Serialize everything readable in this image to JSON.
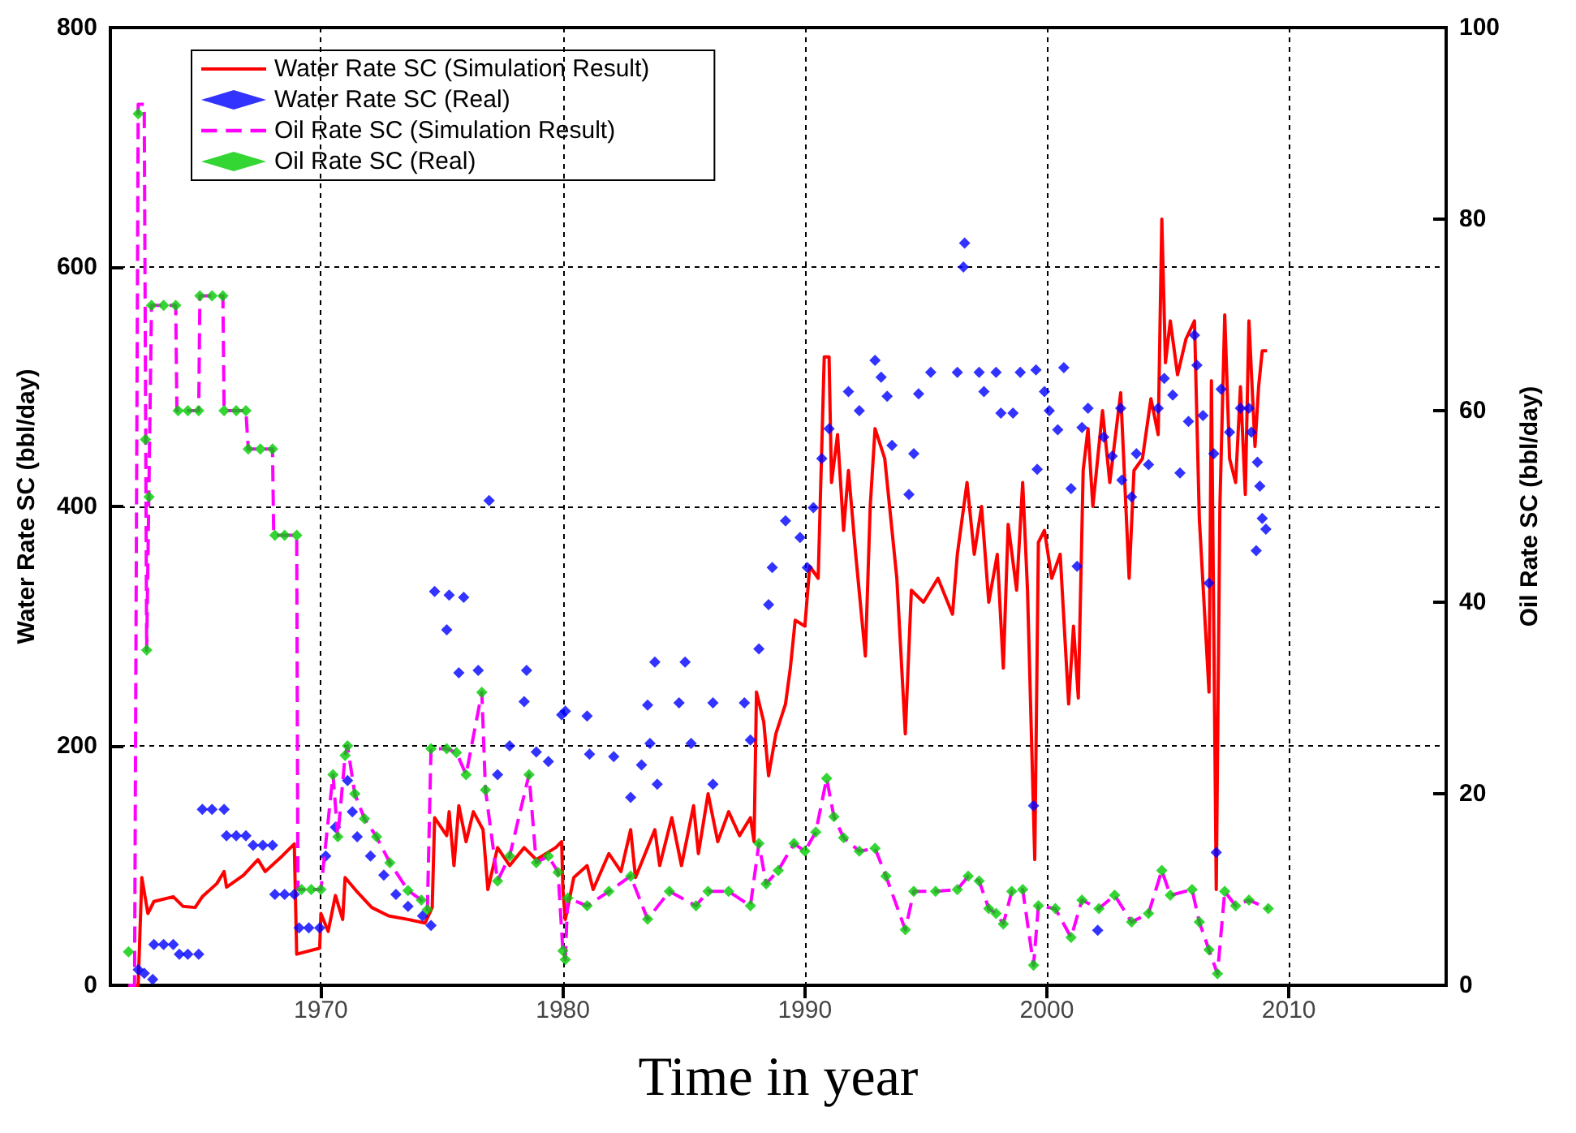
{
  "chart_data": {
    "type": "line",
    "xlabel": "Time in year",
    "ylabel": "Water Rate SC (bbl/day)",
    "y2label": "Oil Rate SC (bbl/day)",
    "xlim": [
      1961.3,
      2016.5
    ],
    "xticks": [
      1970,
      1980,
      1990,
      2000,
      2010
    ],
    "ylim": [
      0,
      800
    ],
    "yticks": [
      0,
      200,
      400,
      600,
      800
    ],
    "y2lim": [
      0,
      100
    ],
    "y2ticks": [
      0,
      20,
      40,
      60,
      80,
      100
    ],
    "grid": true,
    "legend": "top left",
    "series": [
      {
        "name": "Water Rate SC (Simulation Result)",
        "type": "line",
        "color": "#ff0000",
        "line_style": "solid",
        "marker": "none",
        "x": [
          1962.05,
          1962.45,
          1962.6,
          1962.85,
          1963.1,
          1963.9,
          1964.3,
          1964.8,
          1965.1,
          1965.7,
          1966.0,
          1966.1,
          1966.8,
          1967.4,
          1967.7,
          1968.4,
          1968.9,
          1969.0,
          1969.95,
          1970.0,
          1970.3,
          1970.6,
          1970.9,
          1971.0,
          1971.5,
          1972.1,
          1972.8,
          1973.6,
          1974.3,
          1974.6,
          1974.7,
          1975.2,
          1975.3,
          1975.5,
          1975.7,
          1976.0,
          1976.3,
          1976.7,
          1976.9,
          1977.3,
          1977.8,
          1978.4,
          1978.9,
          1979.7,
          1979.95,
          1980.0,
          1980.1,
          1980.45,
          1981.0,
          1981.25,
          1981.9,
          1982.4,
          1982.8,
          1983.0,
          1983.8,
          1984.0,
          1984.5,
          1984.9,
          1985.4,
          1985.6,
          1986.0,
          1986.4,
          1986.85,
          1987.3,
          1987.75,
          1987.9,
          1988.0,
          1988.3,
          1988.5,
          1988.8,
          1989.2,
          1989.4,
          1989.6,
          1990.0,
          1990.2,
          1990.55,
          1990.8,
          1991.0,
          1991.1,
          1991.35,
          1991.6,
          1991.8,
          1992.1,
          1992.5,
          1992.7,
          1992.9,
          1993.3,
          1993.6,
          1993.8,
          1994.15,
          1994.4,
          1994.9,
          1995.5,
          1996.1,
          1996.3,
          1996.7,
          1997.0,
          1997.3,
          1997.6,
          1997.95,
          1998.2,
          1998.4,
          1998.75,
          1999.0,
          1999.2,
          1999.5,
          1999.65,
          1999.9,
          2000.2,
          2000.55,
          2000.9,
          2001.1,
          2001.3,
          2001.5,
          2001.7,
          2001.9,
          2002.3,
          2002.6,
          2003.05,
          2003.4,
          2003.6,
          2003.95,
          2004.3,
          2004.6,
          2004.75,
          2004.9,
          2005.1,
          2005.4,
          2005.75,
          2006.1,
          2006.3,
          2006.7,
          2006.8,
          2007.0,
          2007.15,
          2007.35,
          2007.55,
          2007.8,
          2008.0,
          2008.2,
          2008.35,
          2008.6,
          2008.75,
          2008.9,
          2009.1
        ],
        "values": [
          0,
          0,
          90,
          60,
          70,
          74,
          66,
          65,
          74,
          85,
          95,
          82,
          92,
          105,
          95,
          108,
          118,
          26,
          31,
          60,
          45,
          75,
          55,
          90,
          78,
          65,
          58,
          55,
          52,
          65,
          140,
          125,
          145,
          100,
          150,
          120,
          145,
          130,
          80,
          115,
          100,
          115,
          105,
          115,
          120,
          80,
          55,
          90,
          100,
          80,
          110,
          95,
          130,
          90,
          130,
          100,
          140,
          100,
          150,
          110,
          160,
          120,
          145,
          125,
          140,
          120,
          245,
          220,
          175,
          210,
          235,
          265,
          305,
          300,
          350,
          340,
          525,
          525,
          420,
          460,
          380,
          430,
          360,
          275,
          400,
          465,
          440,
          380,
          340,
          210,
          330,
          320,
          340,
          310,
          360,
          420,
          360,
          400,
          320,
          360,
          265,
          385,
          330,
          420,
          330,
          105,
          370,
          380,
          340,
          360,
          235,
          300,
          240,
          430,
          465,
          400,
          480,
          420,
          495,
          340,
          430,
          440,
          490,
          460,
          640,
          520,
          555,
          510,
          540,
          555,
          390,
          245,
          505,
          80,
          400,
          560,
          440,
          420,
          500,
          410,
          555,
          450,
          500,
          530,
          530
        ]
      },
      {
        "name": "Water Rate SC (Real)",
        "type": "scatter",
        "color": "#0000ff",
        "marker": "diamond",
        "x": [
          1962.45,
          1962.7,
          1963.05,
          1963.1,
          1963.5,
          1963.9,
          1964.15,
          1964.5,
          1964.95,
          1965.1,
          1965.5,
          1966.0,
          1966.1,
          1966.5,
          1966.9,
          1967.2,
          1967.6,
          1968.0,
          1968.1,
          1968.5,
          1968.9,
          1969.1,
          1969.5,
          1969.95,
          1970.2,
          1970.6,
          1971.1,
          1971.3,
          1971.5,
          1972.05,
          1972.6,
          1973.1,
          1973.6,
          1974.2,
          1974.55,
          1974.7,
          1975.3,
          1975.9,
          1975.2,
          1975.7,
          1976.5,
          1976.95,
          1977.3,
          1977.8,
          1978.5,
          1978.4,
          1978.9,
          1979.4,
          1979.95,
          1980.1,
          1981.0,
          1981.1,
          1982.1,
          1983.25,
          1982.8,
          1983.8,
          1985.05,
          1983.5,
          1984.8,
          1986.2,
          1987.5,
          1983.6,
          1985.3,
          1987.75,
          1983.9,
          1986.2,
          1988.1,
          1988.5,
          1988.65,
          1989.2,
          1989.8,
          1990.1,
          1990.35,
          1990.7,
          1991.0,
          1991.8,
          1992.25,
          1992.9,
          1993.15,
          1993.4,
          1993.6,
          1994.3,
          1994.5,
          1995.2,
          1994.7,
          1996.3,
          1996.55,
          1996.6,
          1997.2,
          1997.4,
          1997.9,
          1998.1,
          1998.9,
          1999.55,
          2000.7,
          1999.9,
          2000.1,
          1998.6,
          1999.6,
          1999.45,
          2000.45,
          2001.0,
          2001.25,
          2001.7,
          2003.05,
          2001.45,
          2002.35,
          2002.7,
          2003.1,
          2003.5,
          2003.7,
          2004.2,
          2004.6,
          2004.85,
          2005.2,
          2005.5,
          2005.85,
          2006.1,
          2006.2,
          2006.45,
          2006.7,
          2007.0,
          2006.9,
          2007.2,
          2007.55,
          2008.0,
          2008.35,
          2008.45,
          2008.7,
          2008.8,
          2008.9,
          2009.05,
          2008.65,
          2002.1
        ],
        "values": [
          13,
          10,
          5,
          34,
          34,
          34,
          26,
          26,
          26,
          147,
          147,
          147,
          125,
          125,
          125,
          117,
          117,
          117,
          76,
          76,
          76,
          48,
          48,
          48,
          108,
          132,
          171,
          145,
          124,
          108,
          92,
          76,
          66,
          58,
          50,
          329,
          326,
          324,
          297,
          261,
          263,
          405,
          176,
          200,
          263,
          237,
          195,
          187,
          226,
          229,
          225,
          193,
          191,
          184,
          157,
          270,
          270,
          234,
          236,
          236,
          236,
          202,
          202,
          205,
          168,
          168,
          281,
          318,
          349,
          388,
          374,
          349,
          399,
          440,
          465,
          496,
          480,
          522,
          508,
          492,
          451,
          410,
          444,
          512,
          494,
          512,
          600,
          620,
          512,
          496,
          512,
          478,
          512,
          514,
          516,
          496,
          480,
          478,
          431,
          150,
          464,
          415,
          350,
          482,
          482,
          466,
          458,
          442,
          422,
          408,
          444,
          435,
          482,
          507,
          493,
          428,
          471,
          543,
          518,
          476,
          336,
          111,
          444,
          498,
          462,
          482,
          482,
          462,
          437,
          417,
          390,
          381,
          363,
          46
        ]
      },
      {
        "name": "Oil Rate SC (Simulation Result)",
        "axis": "y2",
        "color": "#ff00ff",
        "line_style": "dashed",
        "marker": "none",
        "x": [
          1962.05,
          1962.3,
          1962.45,
          1962.7,
          1962.8,
          1963.0,
          1964.0,
          1964.05,
          1964.95,
          1965.0,
          1965.95,
          1966.0,
          1966.9,
          1967.0,
          1968.0,
          1968.05,
          1969.0,
          1969.05,
          1970.0,
          1970.5,
          1970.7,
          1971.0,
          1971.1,
          1971.4,
          1971.8,
          1972.3,
          1972.85,
          1973.6,
          1974.15,
          1974.4,
          1974.55,
          1975.2,
          1975.6,
          1976.0,
          1976.65,
          1976.8,
          1977.3,
          1977.8,
          1978.6,
          1978.9,
          1979.4,
          1979.8,
          1980.0,
          1980.1,
          1980.2,
          1981.0,
          1981.9,
          1982.8,
          1983.5,
          1984.4,
          1985.5,
          1986.0,
          1986.85,
          1987.75,
          1988.1,
          1988.4,
          1988.9,
          1989.55,
          1990.0,
          1990.45,
          1990.9,
          1991.2,
          1991.6,
          1992.25,
          1992.9,
          1993.35,
          1994.15,
          1994.5,
          1995.4,
          1996.3,
          1996.75,
          1997.2,
          1997.6,
          1997.9,
          1998.2,
          1998.55,
          1999.0,
          1999.45,
          1999.65,
          2000.35,
          2001.0,
          2001.45,
          2002.15,
          2002.8,
          2003.5,
          2004.2,
          2004.75,
          2005.1,
          2006.0,
          2006.3,
          2006.7,
          2007.05,
          2007.35,
          2007.8,
          2008.35,
          2009.15
        ],
        "values": [
          0,
          0,
          92,
          92,
          35,
          71,
          71,
          60,
          60,
          72,
          72,
          60,
          60,
          56,
          56,
          47,
          47,
          10,
          10,
          22,
          15.5,
          24,
          25,
          20,
          17.4,
          15.5,
          12.8,
          9.9,
          8.9,
          7.9,
          24.7,
          24.7,
          24.3,
          22,
          30.6,
          20.4,
          10.9,
          13.5,
          22,
          12.8,
          13.5,
          11.8,
          3.6,
          2.7,
          9.1,
          8.3,
          9.8,
          11.4,
          6.9,
          9.8,
          8.3,
          9.8,
          9.8,
          8.3,
          14.8,
          10.6,
          12,
          14.8,
          14,
          16,
          21.6,
          17.6,
          15.4,
          14,
          14.3,
          11.4,
          5.8,
          9.8,
          9.8,
          10,
          11.4,
          10.9,
          8,
          7.5,
          6.4,
          9.8,
          10,
          2.1,
          8.3,
          8,
          5,
          8.9,
          8,
          9.4,
          6.6,
          7.5,
          12,
          9.4,
          10,
          6.6,
          3.7,
          1.2,
          9.8,
          8.3,
          8.9,
          8
        ]
      },
      {
        "name": "Oil Rate SC (Real)",
        "type": "scatter",
        "axis": "y2",
        "color": "#00cc00",
        "marker": "diamond",
        "x": [
          1962.05,
          1962.45,
          1962.75,
          1962.8,
          1962.9,
          1963.0,
          1963.5,
          1964.0,
          1964.1,
          1964.5,
          1964.95,
          1965.0,
          1965.5,
          1965.95,
          1966.0,
          1966.5,
          1966.9,
          1967.0,
          1967.5,
          1968.0,
          1968.1,
          1968.5,
          1969.0,
          1969.2,
          1969.6,
          1970.0,
          1970.5,
          1970.7,
          1971.0,
          1971.1,
          1971.4,
          1971.8,
          1972.3,
          1972.85,
          1973.6,
          1974.15,
          1974.4,
          1974.55,
          1975.2,
          1975.6,
          1976.0,
          1976.65,
          1976.8,
          1977.3,
          1977.8,
          1978.6,
          1978.9,
          1979.4,
          1979.8,
          1980.0,
          1980.1,
          1980.2,
          1981.0,
          1981.9,
          1982.8,
          1983.5,
          1984.4,
          1985.5,
          1986.0,
          1986.85,
          1987.75,
          1988.1,
          1988.4,
          1988.9,
          1989.55,
          1990.0,
          1990.45,
          1990.9,
          1991.2,
          1991.6,
          1992.25,
          1992.9,
          1993.35,
          1994.15,
          1994.5,
          1995.4,
          1996.3,
          1996.75,
          1997.2,
          1997.6,
          1997.9,
          1998.2,
          1998.55,
          1999.0,
          1999.45,
          1999.65,
          2000.35,
          2001.0,
          2001.45,
          2002.15,
          2002.8,
          2003.5,
          2004.2,
          2004.75,
          2005.1,
          2006.0,
          2006.3,
          2006.7,
          2007.05,
          2007.35,
          2007.8,
          2008.35,
          2009.15
        ],
        "values": [
          3.5,
          91,
          57,
          35,
          51,
          71,
          71,
          71,
          60,
          60,
          60,
          72,
          72,
          72,
          60,
          60,
          60,
          56,
          56,
          56,
          47,
          47,
          47,
          10,
          10,
          10,
          22,
          15.5,
          24,
          25,
          20,
          17.4,
          15.5,
          12.8,
          9.9,
          8.9,
          7.9,
          24.7,
          24.7,
          24.3,
          22,
          30.6,
          20.4,
          10.9,
          13.5,
          22,
          12.8,
          13.5,
          11.8,
          3.6,
          2.7,
          9.1,
          8.3,
          9.8,
          11.4,
          6.9,
          9.8,
          8.3,
          9.8,
          9.8,
          8.3,
          14.8,
          10.6,
          12,
          14.8,
          14,
          16,
          21.6,
          17.6,
          15.4,
          14,
          14.3,
          11.4,
          5.8,
          9.8,
          9.8,
          10,
          11.4,
          10.9,
          8,
          7.5,
          6.4,
          9.8,
          10,
          2.1,
          8.3,
          8,
          5,
          8.9,
          8,
          9.4,
          6.6,
          7.5,
          12,
          9.4,
          10,
          6.6,
          3.7,
          1.2,
          9.8,
          8.3,
          8.9,
          8
        ]
      }
    ]
  }
}
